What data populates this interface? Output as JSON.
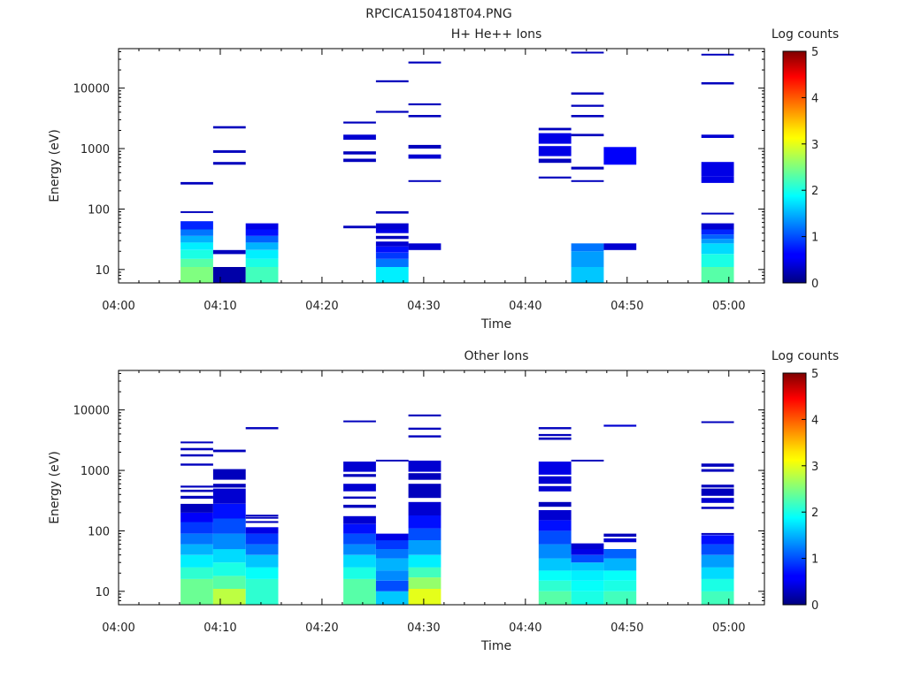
{
  "figure_title": "RPCICA150418T04.PNG",
  "chart_data": [
    {
      "type": "heatmap",
      "title": "H+ He++ Ions",
      "xlabel": "Time",
      "ylabel": "Energy (eV)",
      "xticks": [
        "04:00",
        "04:10",
        "04:20",
        "04:30",
        "04:40",
        "04:50",
        "05:00"
      ],
      "yticks": [
        "10",
        "100",
        "1000",
        "10000"
      ],
      "ylim": [
        6,
        45000
      ],
      "yscale": "log",
      "colorbar": {
        "label": "Log counts",
        "ticks": [
          "0",
          "1",
          "2",
          "3",
          "4",
          "5"
        ],
        "range": [
          0,
          5
        ]
      },
      "columns": [
        {
          "t0": "04:06:06",
          "t1": "04:09:18",
          "cells": [
            [
              6,
              11,
              2.5
            ],
            [
              11,
              15,
              2.3
            ],
            [
              15,
              21,
              2.0
            ],
            [
              21,
              28,
              1.8
            ],
            [
              28,
              36,
              1.5
            ],
            [
              36,
              46,
              1.2
            ],
            [
              46,
              63,
              0.8
            ],
            [
              86,
              92,
              0.3
            ],
            [
              255,
              280,
              0.3
            ]
          ]
        },
        {
          "t0": "04:09:18",
          "t1": "04:12:30",
          "cells": [
            [
              6,
              11,
              0.2
            ],
            [
              18,
              21,
              0.3
            ],
            [
              540,
              600,
              0.3
            ],
            [
              850,
              940,
              0.3
            ],
            [
              2150,
              2350,
              0.3
            ]
          ]
        },
        {
          "t0": "04:12:30",
          "t1": "04:15:42",
          "cells": [
            [
              6,
              11,
              2.2
            ],
            [
              11,
              15,
              2.0
            ],
            [
              15,
              21,
              1.8
            ],
            [
              21,
              28,
              1.5
            ],
            [
              28,
              36,
              1.1
            ],
            [
              36,
              46,
              0.7
            ],
            [
              46,
              58,
              0.5
            ]
          ]
        },
        {
          "t0": "04:22:06",
          "t1": "04:25:18",
          "cells": [
            [
              48,
              53,
              0.3
            ],
            [
              600,
              680,
              0.3
            ],
            [
              800,
              900,
              0.3
            ],
            [
              1400,
              1700,
              0.4
            ],
            [
              2600,
              2800,
              0.3
            ]
          ]
        },
        {
          "t0": "04:25:18",
          "t1": "04:28:30",
          "cells": [
            [
              6,
              11,
              1.8
            ],
            [
              11,
              15,
              1.2
            ],
            [
              15,
              19,
              0.9
            ],
            [
              19,
              24,
              0.7
            ],
            [
              24,
              29,
              0.4
            ],
            [
              32,
              36,
              0.3
            ],
            [
              40,
              46,
              0.5
            ],
            [
              46,
              58,
              0.4
            ],
            [
              84,
              92,
              0.3
            ],
            [
              3900,
              4200,
              0.3
            ],
            [
              12500,
              13500,
              0.3
            ]
          ]
        },
        {
          "t0": "04:28:30",
          "t1": "04:31:42",
          "cells": [
            [
              21,
              27,
              0.4
            ],
            [
              280,
              300,
              0.3
            ],
            [
              680,
              800,
              0.4
            ],
            [
              1000,
              1150,
              0.3
            ],
            [
              3300,
              3600,
              0.3
            ],
            [
              5200,
              5600,
              0.3
            ],
            [
              25500,
              27500,
              0.3
            ]
          ]
        },
        {
          "t0": "04:41:18",
          "t1": "04:44:30",
          "cells": [
            [
              320,
              345,
              0.3
            ],
            [
              580,
              680,
              0.3
            ],
            [
              750,
              1100,
              0.5
            ],
            [
              1200,
              1800,
              0.5
            ],
            [
              2000,
              2200,
              0.3
            ]
          ]
        },
        {
          "t0": "04:44:30",
          "t1": "04:47:42",
          "cells": [
            [
              6,
              11,
              1.6
            ],
            [
              11,
              20,
              1.4
            ],
            [
              20,
              27,
              1.2
            ],
            [
              280,
              300,
              0.3
            ],
            [
              450,
              500,
              0.3
            ],
            [
              1600,
              1750,
              0.3
            ],
            [
              3300,
              3600,
              0.3
            ],
            [
              4900,
              5300,
              0.3
            ],
            [
              7800,
              8500,
              0.3
            ],
            [
              38000,
              40000,
              0.3
            ]
          ]
        },
        {
          "t0": "04:47:42",
          "t1": "04:50:54",
          "cells": [
            [
              21,
              27,
              0.4
            ],
            [
              540,
              1060,
              0.6
            ]
          ]
        },
        {
          "t0": "04:57:18",
          "t1": "05:00:30",
          "cells": [
            [
              6,
              11,
              2.3
            ],
            [
              11,
              18,
              2.0
            ],
            [
              18,
              27,
              1.7
            ],
            [
              27,
              32,
              1.4
            ],
            [
              32,
              38,
              1.1
            ],
            [
              38,
              46,
              0.8
            ],
            [
              46,
              58,
              0.4
            ],
            [
              82,
              87,
              0.3
            ],
            [
              270,
              350,
              0.5
            ],
            [
              350,
              600,
              0.5
            ],
            [
              1500,
              1700,
              0.4
            ],
            [
              11500,
              12500,
              0.3
            ],
            [
              35000,
              37000,
              0.3
            ]
          ]
        }
      ]
    },
    {
      "type": "heatmap",
      "title": "Other Ions",
      "xlabel": "Time",
      "ylabel": "Energy (eV)",
      "xticks": [
        "04:00",
        "04:10",
        "04:20",
        "04:30",
        "04:40",
        "04:50",
        "05:00"
      ],
      "yticks": [
        "10",
        "100",
        "1000",
        "10000"
      ],
      "ylim": [
        6,
        45000
      ],
      "yscale": "log",
      "colorbar": {
        "label": "Log counts",
        "ticks": [
          "0",
          "1",
          "2",
          "3",
          "4",
          "5"
        ],
        "range": [
          0,
          5
        ]
      },
      "columns": [
        {
          "t0": "04:06:06",
          "t1": "04:09:18",
          "cells": [
            [
              6,
              16,
              2.4
            ],
            [
              16,
              25,
              2.1
            ],
            [
              25,
              40,
              1.8
            ],
            [
              40,
              60,
              1.5
            ],
            [
              60,
              90,
              1.2
            ],
            [
              90,
              140,
              0.9
            ],
            [
              140,
              200,
              0.6
            ],
            [
              200,
              280,
              0.3
            ],
            [
              340,
              380,
              0.3
            ],
            [
              440,
              480,
              0.3
            ],
            [
              520,
              560,
              0.3
            ],
            [
              1200,
              1300,
              0.3
            ],
            [
              1700,
              1850,
              0.3
            ],
            [
              2150,
              2350,
              0.3
            ],
            [
              2800,
              3000,
              0.3
            ]
          ]
        },
        {
          "t0": "04:09:18",
          "t1": "04:12:30",
          "cells": [
            [
              6,
              11,
              2.8
            ],
            [
              11,
              18,
              2.3
            ],
            [
              18,
              30,
              2.0
            ],
            [
              30,
              50,
              1.7
            ],
            [
              50,
              90,
              1.3
            ],
            [
              90,
              160,
              1.0
            ],
            [
              160,
              280,
              0.7
            ],
            [
              280,
              500,
              0.4
            ],
            [
              520,
              600,
              0.3
            ],
            [
              700,
              1050,
              0.3
            ],
            [
              2000,
              2200,
              0.3
            ]
          ]
        },
        {
          "t0": "04:12:30",
          "t1": "04:15:42",
          "cells": [
            [
              6,
              16,
              2.1
            ],
            [
              16,
              25,
              1.9
            ],
            [
              25,
              40,
              1.6
            ],
            [
              40,
              60,
              1.2
            ],
            [
              60,
              90,
              0.9
            ],
            [
              90,
              115,
              0.5
            ],
            [
              135,
              145,
              0.3
            ],
            [
              160,
              170,
              0.3
            ],
            [
              175,
              185,
              0.3
            ],
            [
              4800,
              5200,
              0.3
            ]
          ]
        },
        {
          "t0": "04:22:06",
          "t1": "04:25:18",
          "cells": [
            [
              6,
              16,
              2.3
            ],
            [
              16,
              25,
              2.0
            ],
            [
              25,
              40,
              1.7
            ],
            [
              40,
              60,
              1.3
            ],
            [
              60,
              90,
              1.0
            ],
            [
              90,
              130,
              0.7
            ],
            [
              130,
              175,
              0.4
            ],
            [
              240,
              270,
              0.3
            ],
            [
              340,
              370,
              0.3
            ],
            [
              450,
              600,
              0.4
            ],
            [
              780,
              870,
              0.3
            ],
            [
              950,
              1400,
              0.4
            ],
            [
              6300,
              6700,
              0.3
            ]
          ]
        },
        {
          "t0": "04:25:18",
          "t1": "04:28:30",
          "cells": [
            [
              6,
              10,
              1.6
            ],
            [
              10,
              15,
              1.0
            ],
            [
              15,
              22,
              1.3
            ],
            [
              22,
              35,
              1.5
            ],
            [
              35,
              50,
              1.2
            ],
            [
              50,
              70,
              0.9
            ],
            [
              70,
              90,
              0.5
            ],
            [
              1400,
              1500,
              0.3
            ]
          ]
        },
        {
          "t0": "04:28:30",
          "t1": "04:31:42",
          "cells": [
            [
              6,
              11,
              3.0
            ],
            [
              11,
              17,
              2.6
            ],
            [
              17,
              25,
              2.2
            ],
            [
              25,
              40,
              1.8
            ],
            [
              40,
              70,
              1.4
            ],
            [
              70,
              110,
              1.0
            ],
            [
              110,
              180,
              0.7
            ],
            [
              180,
              300,
              0.4
            ],
            [
              350,
              600,
              0.3
            ],
            [
              700,
              900,
              0.3
            ],
            [
              950,
              1450,
              0.4
            ],
            [
              3500,
              3800,
              0.3
            ],
            [
              4700,
              5100,
              0.3
            ],
            [
              7800,
              8400,
              0.3
            ]
          ]
        },
        {
          "t0": "04:41:18",
          "t1": "04:44:30",
          "cells": [
            [
              6,
              10,
              2.3
            ],
            [
              10,
              15,
              2.1
            ],
            [
              15,
              22,
              1.9
            ],
            [
              22,
              35,
              1.6
            ],
            [
              35,
              60,
              1.3
            ],
            [
              60,
              100,
              1.0
            ],
            [
              100,
              150,
              0.7
            ],
            [
              150,
              220,
              0.4
            ],
            [
              250,
              300,
              0.3
            ],
            [
              450,
              550,
              0.4
            ],
            [
              600,
              800,
              0.4
            ],
            [
              850,
              1400,
              0.5
            ],
            [
              3200,
              3500,
              0.3
            ],
            [
              3700,
              4000,
              0.3
            ],
            [
              4800,
              5200,
              0.3
            ]
          ]
        },
        {
          "t0": "04:44:30",
          "t1": "04:47:42",
          "cells": [
            [
              6,
              10,
              2.0
            ],
            [
              10,
              15,
              1.9
            ],
            [
              15,
              22,
              1.8
            ],
            [
              22,
              30,
              1.6
            ],
            [
              30,
              40,
              1.0
            ],
            [
              40,
              50,
              0.5
            ],
            [
              50,
              62,
              0.4
            ],
            [
              1400,
              1500,
              0.3
            ]
          ]
        },
        {
          "t0": "04:47:42",
          "t1": "04:50:54",
          "cells": [
            [
              6,
              10,
              2.2
            ],
            [
              10,
              15,
              2.0
            ],
            [
              15,
              22,
              1.9
            ],
            [
              22,
              35,
              1.5
            ],
            [
              35,
              50,
              1.1
            ],
            [
              65,
              75,
              0.4
            ],
            [
              80,
              90,
              0.3
            ],
            [
              5300,
              5700,
              0.4
            ]
          ]
        },
        {
          "t0": "04:57:18",
          "t1": "05:00:30",
          "cells": [
            [
              6,
              10,
              2.2
            ],
            [
              10,
              16,
              2.0
            ],
            [
              16,
              25,
              1.7
            ],
            [
              25,
              40,
              1.4
            ],
            [
              40,
              60,
              1.0
            ],
            [
              60,
              85,
              0.7
            ],
            [
              87,
              92,
              0.3
            ],
            [
              230,
              250,
              0.3
            ],
            [
              290,
              350,
              0.4
            ],
            [
              380,
              500,
              0.3
            ],
            [
              520,
              580,
              0.3
            ],
            [
              950,
              1050,
              0.3
            ],
            [
              1150,
              1300,
              0.3
            ],
            [
              6100,
              6500,
              0.3
            ]
          ]
        }
      ]
    }
  ]
}
